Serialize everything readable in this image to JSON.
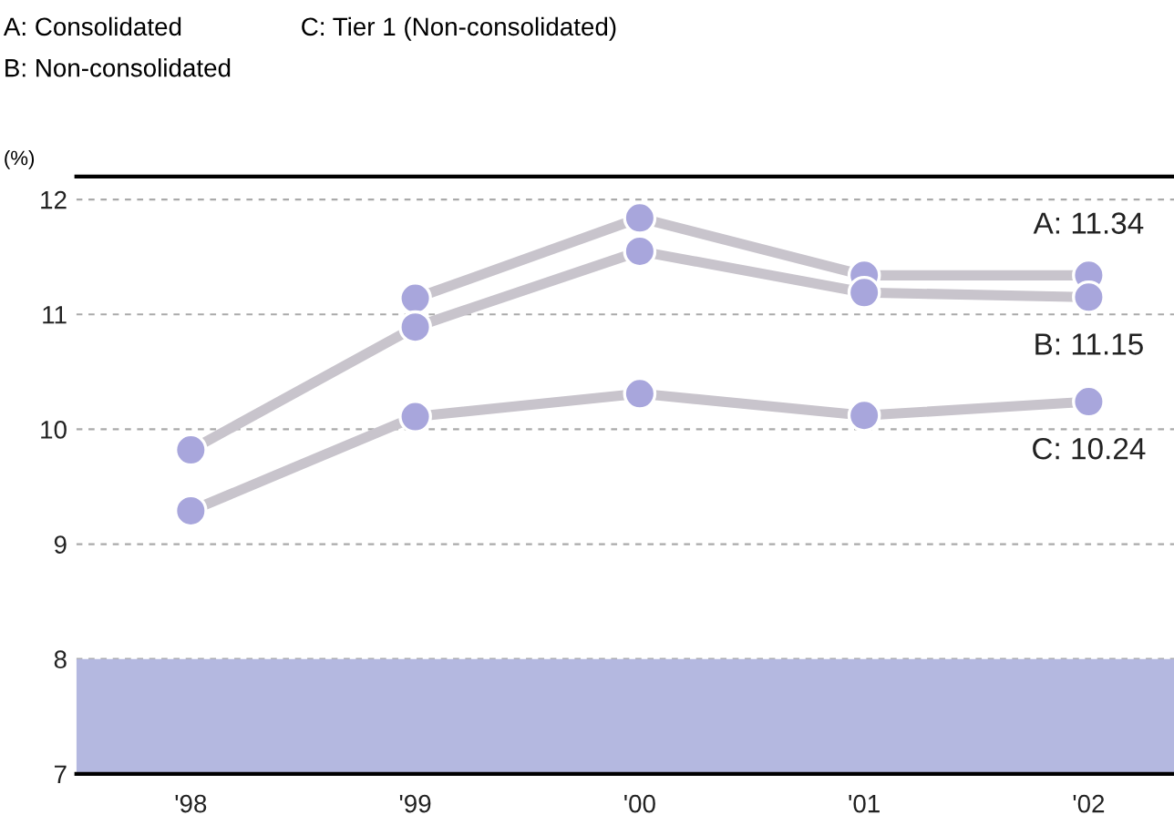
{
  "chart_data": {
    "type": "line",
    "ylabel": "(%)",
    "annotations": [
      "A: Consolidated",
      "B: Non-consolidated",
      "C: Tier 1 (Non-consolidated)"
    ],
    "categories": [
      "'98",
      "'99",
      "'00",
      "'01",
      "'02"
    ],
    "series": [
      {
        "color": "#c8c4cc",
        "values": [
          null,
          11.14,
          11.84,
          11.34,
          11.34
        ],
        "value_labels": [
          null,
          null,
          null,
          null,
          "A: 11.34"
        ]
      },
      {
        "color": "#c8c4cc",
        "values": [
          9.82,
          10.89,
          11.55,
          11.19,
          11.15
        ],
        "value_labels": [
          null,
          null,
          null,
          null,
          "B: 11.15"
        ]
      },
      {
        "color": "#c8c4cc",
        "values": [
          9.29,
          10.11,
          10.31,
          10.12,
          10.24
        ],
        "value_labels": [
          null,
          null,
          null,
          null,
          "C: 10.24"
        ]
      }
    ],
    "ylim": [
      7,
      12.2
    ],
    "yticks": [
      7,
      8,
      9,
      10,
      11,
      12
    ],
    "grid": "y",
    "marker": "circle",
    "line_style": "solid",
    "bands": [
      {
        "axis": "y",
        "from": 7,
        "to": 8,
        "color": "#b4b8e0"
      }
    ]
  }
}
